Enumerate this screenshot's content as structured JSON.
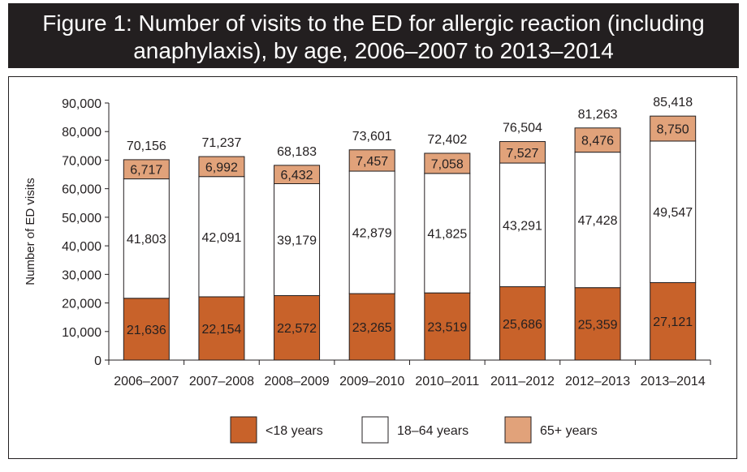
{
  "title": {
    "line1": "Figure 1: Number of visits to the ED for allergic reaction (including",
    "line2": "anaphylaxis), by age, 2006–2007 to 2013–2014"
  },
  "colors": {
    "title_bg": "#231f20",
    "under18": "#c8622a",
    "age18_64": "#ffffff",
    "age65plus": "#e1a27a"
  },
  "chart_data": {
    "type": "bar",
    "stacked": true,
    "ylabel": "Number of ED visits",
    "ylim": [
      0,
      90000
    ],
    "yticks": [
      0,
      10000,
      20000,
      30000,
      40000,
      50000,
      60000,
      70000,
      80000,
      90000
    ],
    "ytick_labels": [
      "0",
      "10,000",
      "20,000",
      "30,000",
      "40,000",
      "50,000",
      "60,000",
      "70,000",
      "80,000",
      "90,000"
    ],
    "categories": [
      "2006–2007",
      "2007–2008",
      "2008–2009",
      "2009–2010",
      "2010–2011",
      "2011–2012",
      "2012–2013",
      "2013–2014"
    ],
    "series": [
      {
        "name": "<18 years",
        "values": [
          21636,
          22154,
          22572,
          23265,
          23519,
          25686,
          25359,
          27121
        ],
        "labels": [
          "21,636",
          "22,154",
          "22,572",
          "23,265",
          "23,519",
          "25,686",
          "25,359",
          "27,121"
        ]
      },
      {
        "name": "18–64 years",
        "values": [
          41803,
          42091,
          39179,
          42879,
          41825,
          43291,
          47428,
          49547
        ],
        "labels": [
          "41,803",
          "42,091",
          "39,179",
          "42,879",
          "41,825",
          "43,291",
          "47,428",
          "49,547"
        ]
      },
      {
        "name": "65+ years",
        "values": [
          6717,
          6992,
          6432,
          7457,
          7058,
          7527,
          8476,
          8750
        ],
        "labels": [
          "6,717",
          "6,992",
          "6,432",
          "7,457",
          "7,058",
          "7,527",
          "8,476",
          "8,750"
        ]
      }
    ],
    "totals": [
      70156,
      71237,
      68183,
      73601,
      72402,
      76504,
      81263,
      85418
    ],
    "total_labels": [
      "70,156",
      "71,237",
      "68,183",
      "73,601",
      "72,402",
      "76,504",
      "81,263",
      "85,418"
    ],
    "legend_position": "bottom",
    "grid": false
  }
}
